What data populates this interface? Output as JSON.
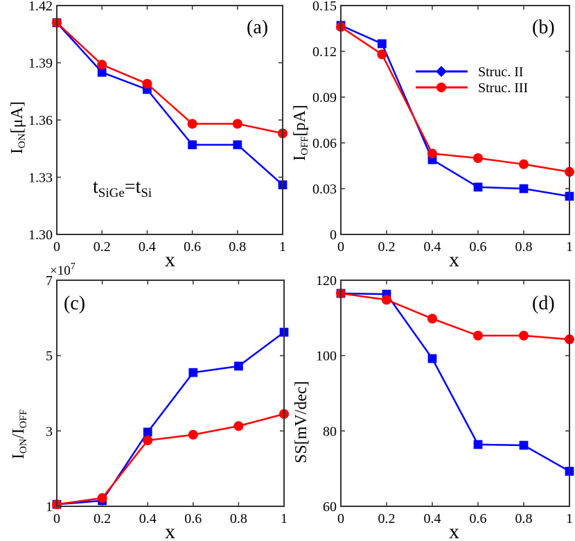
{
  "chart_data": [
    {
      "type": "line",
      "panel_tag": "(a)",
      "xlabel": "x",
      "ylabel_main": "I",
      "ylabel_sub": "ON",
      "ylabel_unit": "[μA]",
      "ylim": [
        1.3,
        1.42
      ],
      "yticks": [
        1.3,
        1.33,
        1.36,
        1.39,
        1.42
      ],
      "ytick_labels": [
        "1.30",
        "1.33",
        "1.36",
        "1.39",
        "1.42"
      ],
      "xticks": [
        0,
        0.2,
        0.4,
        0.6,
        0.8,
        1
      ],
      "xtick_labels": [
        "0",
        "0.2",
        "0.4",
        "0.6",
        "0.8",
        "1"
      ],
      "annotation_main_1": "t",
      "annotation_sub_1": "SiGe",
      "annotation_eq": "=t",
      "annotation_sub_2": "Si",
      "series": [
        {
          "key": "struc2",
          "color": "#0000ff",
          "marker": "diamond",
          "x": [
            0,
            0.2,
            0.4,
            0.6,
            0.8,
            1
          ],
          "y": [
            1.411,
            1.385,
            1.376,
            1.347,
            1.347,
            1.326
          ]
        },
        {
          "key": "struc3",
          "color": "#ff0000",
          "marker": "circle",
          "x": [
            0,
            0.2,
            0.4,
            0.6,
            0.8,
            1
          ],
          "y": [
            1.411,
            1.389,
            1.379,
            1.358,
            1.358,
            1.353
          ]
        }
      ]
    },
    {
      "type": "line",
      "panel_tag": "(b)",
      "xlabel": "x",
      "ylabel_main": "I",
      "ylabel_sub": "OFF",
      "ylabel_unit": "[pA]",
      "ylim": [
        0,
        0.15
      ],
      "yticks": [
        0,
        0.03,
        0.06,
        0.09,
        0.12,
        0.15
      ],
      "ytick_labels": [
        "0",
        "0.03",
        "0.06",
        "0.09",
        "0.12",
        "0.15"
      ],
      "xticks": [
        0,
        0.2,
        0.4,
        0.6,
        0.8,
        1
      ],
      "xtick_labels": [
        "0",
        "0.2",
        "0.4",
        "0.6",
        "0.8",
        "1"
      ],
      "legend": {
        "placement": "top-right",
        "entries": [
          "Struc. II",
          "Struc. III"
        ]
      },
      "series": [
        {
          "key": "struc2",
          "name": "Struc. II",
          "color": "#0000ff",
          "marker": "diamond",
          "x": [
            0,
            0.18,
            0.4,
            0.6,
            0.8,
            1
          ],
          "y": [
            0.137,
            0.125,
            0.049,
            0.031,
            0.03,
            0.025
          ]
        },
        {
          "key": "struc3",
          "name": "Struc. III",
          "color": "#ff0000",
          "marker": "circle",
          "x": [
            0,
            0.18,
            0.4,
            0.6,
            0.8,
            1
          ],
          "y": [
            0.136,
            0.118,
            0.053,
            0.05,
            0.046,
            0.041
          ]
        }
      ]
    },
    {
      "type": "line",
      "panel_tag": "(c)",
      "xlabel": "x",
      "ylabel_main_1": "I",
      "ylabel_sub_1": "ON",
      "ylabel_slash": "/I",
      "ylabel_sub_2": "OFF",
      "scale_label": "×10",
      "scale_exp": "7",
      "ylim": [
        1,
        7
      ],
      "yticks": [
        1,
        3,
        5,
        7
      ],
      "ytick_labels": [
        "1",
        "3",
        "5",
        "7"
      ],
      "xticks": [
        0,
        0.2,
        0.4,
        0.6,
        0.8,
        1
      ],
      "xtick_labels": [
        "0",
        "0.2",
        "0.4",
        "0.6",
        "0.8",
        "1"
      ],
      "series": [
        {
          "key": "struc2",
          "color": "#0000ff",
          "marker": "diamond",
          "x": [
            0,
            0.2,
            0.4,
            0.6,
            0.8,
            1
          ],
          "y": [
            1.05,
            1.15,
            2.97,
            4.55,
            4.72,
            5.62
          ]
        },
        {
          "key": "struc3",
          "color": "#ff0000",
          "marker": "circle",
          "x": [
            0,
            0.2,
            0.4,
            0.6,
            0.8,
            1
          ],
          "y": [
            1.05,
            1.22,
            2.75,
            2.9,
            3.13,
            3.45
          ]
        }
      ]
    },
    {
      "type": "line",
      "panel_tag": "(d)",
      "xlabel": "x",
      "ylabel": "SS[mV/dec]",
      "ylim": [
        60,
        120
      ],
      "yticks": [
        60,
        80,
        100,
        120
      ],
      "ytick_labels": [
        "60",
        "80",
        "100",
        "120"
      ],
      "xticks": [
        0,
        0.2,
        0.4,
        0.6,
        0.8,
        1
      ],
      "xtick_labels": [
        "0",
        "0.2",
        "0.4",
        "0.6",
        "0.8",
        "1"
      ],
      "series": [
        {
          "key": "struc2",
          "color": "#0000ff",
          "marker": "diamond",
          "x": [
            0,
            0.2,
            0.4,
            0.6,
            0.8,
            1
          ],
          "y": [
            116.5,
            116.3,
            99.2,
            76.4,
            76.2,
            69.3
          ]
        },
        {
          "key": "struc3",
          "color": "#ff0000",
          "marker": "circle",
          "x": [
            0,
            0.2,
            0.4,
            0.6,
            0.8,
            1
          ],
          "y": [
            116.5,
            114.8,
            109.8,
            105.3,
            105.3,
            104.3
          ]
        }
      ]
    }
  ]
}
